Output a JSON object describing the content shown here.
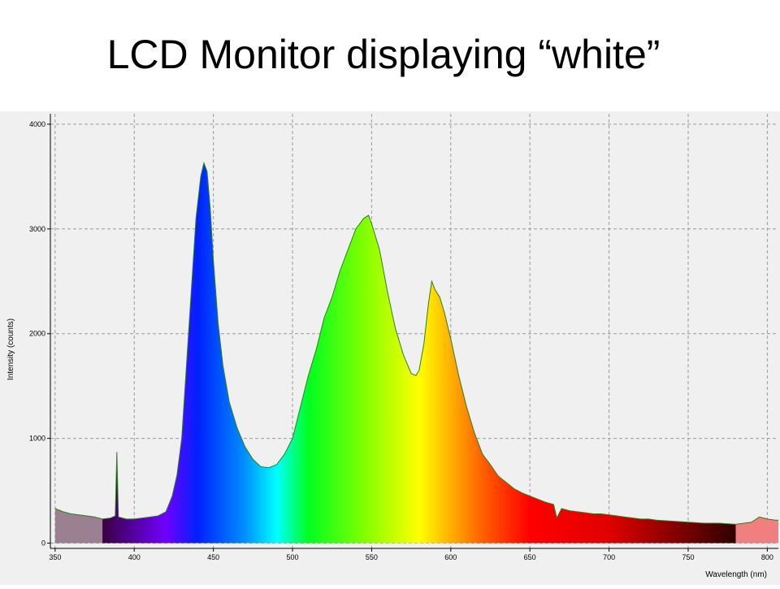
{
  "chart_data": {
    "type": "area",
    "title": "LCD Monitor displaying “white”",
    "x_label": "Wavelength (nm)",
    "y_label": "Intensity (counts)",
    "x": [
      350,
      355,
      360,
      365,
      370,
      375,
      380,
      385,
      388,
      389,
      390,
      395,
      400,
      405,
      410,
      415,
      420,
      424,
      427,
      430,
      433,
      436,
      439,
      442,
      444,
      446,
      448,
      450,
      453,
      456,
      460,
      465,
      470,
      475,
      480,
      485,
      490,
      495,
      500,
      505,
      510,
      515,
      520,
      525,
      530,
      535,
      540,
      545,
      548,
      550,
      555,
      560,
      565,
      570,
      575,
      578,
      580,
      583,
      586,
      588,
      590,
      593,
      596,
      600,
      605,
      610,
      615,
      620,
      625,
      630,
      635,
      640,
      645,
      650,
      655,
      660,
      665,
      667,
      670,
      675,
      680,
      685,
      690,
      695,
      700,
      705,
      710,
      715,
      720,
      725,
      730,
      740,
      750,
      760,
      770,
      780,
      790,
      795,
      800,
      805,
      807
    ],
    "values": [
      330,
      300,
      280,
      270,
      260,
      250,
      230,
      240,
      260,
      870,
      250,
      230,
      230,
      240,
      250,
      260,
      300,
      450,
      650,
      1000,
      1700,
      2400,
      3100,
      3500,
      3630,
      3550,
      3200,
      2700,
      2100,
      1700,
      1350,
      1100,
      920,
      800,
      730,
      720,
      750,
      850,
      1000,
      1300,
      1600,
      1850,
      2150,
      2350,
      2600,
      2800,
      3000,
      3100,
      3130,
      3050,
      2800,
      2400,
      2050,
      1800,
      1620,
      1600,
      1650,
      1900,
      2300,
      2500,
      2420,
      2350,
      2200,
      1950,
      1600,
      1300,
      1050,
      850,
      750,
      640,
      580,
      520,
      480,
      450,
      420,
      390,
      370,
      240,
      330,
      310,
      300,
      290,
      280,
      280,
      270,
      260,
      250,
      240,
      230,
      230,
      220,
      210,
      200,
      190,
      190,
      180,
      200,
      250,
      230,
      220,
      220
    ],
    "line_color": "#2e7d1f",
    "xlim": [
      347,
      807
    ],
    "ylim": [
      -50,
      4100
    ],
    "xticks": [
      350,
      400,
      450,
      500,
      550,
      600,
      650,
      700,
      750,
      800
    ],
    "yticks": [
      0,
      1000,
      2000,
      3000,
      4000
    ],
    "grid": true
  }
}
